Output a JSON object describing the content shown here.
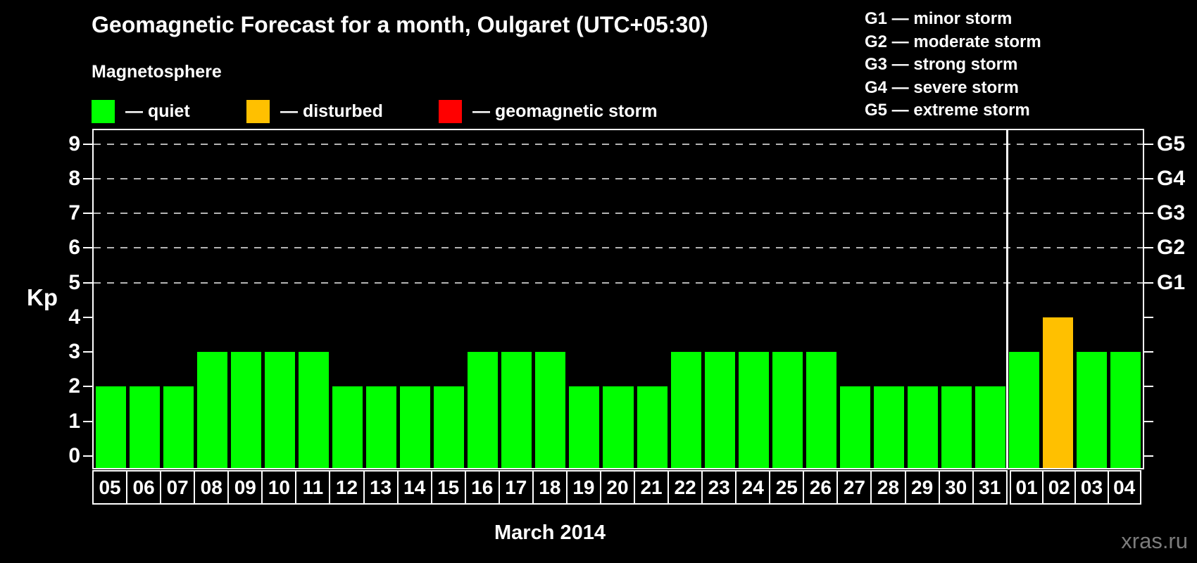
{
  "header": {
    "title": "Geomagnetic Forecast for a month, Oulgaret (UTC+05:30)"
  },
  "legend": {
    "title": "Magnetosphere",
    "items": [
      {
        "name": "quiet",
        "label": "— quiet",
        "color": "#00ff00"
      },
      {
        "name": "disturbed",
        "label": "— disturbed",
        "color": "#ffc000"
      },
      {
        "name": "geomagnetic-storm",
        "label": "— geomagnetic storm",
        "color": "#ff0000"
      }
    ]
  },
  "storm_scale_legend": [
    "G1 — minor storm",
    "G2 — moderate storm",
    "G3 — strong storm",
    "G4 — severe storm",
    "G5 — extreme storm"
  ],
  "watermark": "xras.ru",
  "chart_data": {
    "type": "bar",
    "title": "Geomagnetic Forecast for a month, Oulgaret (UTC+05:30)",
    "ylabel": "Kp",
    "month_label": "March 2014",
    "ylim": [
      0,
      9
    ],
    "yticks": [
      0,
      1,
      2,
      3,
      4,
      5,
      6,
      7,
      8,
      9
    ],
    "gridlines_at_kp": [
      5,
      6,
      7,
      8,
      9
    ],
    "grid": "dashed horizontal lines at storm levels only",
    "legend_position": "top",
    "right_axis": [
      {
        "kp": 5,
        "label": "G1"
      },
      {
        "kp": 6,
        "label": "G2"
      },
      {
        "kp": 7,
        "label": "G3"
      },
      {
        "kp": 8,
        "label": "G4"
      },
      {
        "kp": 9,
        "label": "G5"
      }
    ],
    "categories": [
      "05",
      "06",
      "07",
      "08",
      "09",
      "10",
      "11",
      "12",
      "13",
      "14",
      "15",
      "16",
      "17",
      "18",
      "19",
      "20",
      "21",
      "22",
      "23",
      "24",
      "25",
      "26",
      "27",
      "28",
      "29",
      "30",
      "31",
      "01",
      "02",
      "03",
      "04"
    ],
    "values": [
      2,
      2,
      2,
      3,
      3,
      3,
      3,
      2,
      2,
      2,
      2,
      3,
      3,
      3,
      2,
      2,
      2,
      3,
      3,
      3,
      3,
      3,
      2,
      2,
      2,
      2,
      2,
      3,
      4,
      3,
      3
    ],
    "statuses": [
      "quiet",
      "quiet",
      "quiet",
      "quiet",
      "quiet",
      "quiet",
      "quiet",
      "quiet",
      "quiet",
      "quiet",
      "quiet",
      "quiet",
      "quiet",
      "quiet",
      "quiet",
      "quiet",
      "quiet",
      "quiet",
      "quiet",
      "quiet",
      "quiet",
      "quiet",
      "quiet",
      "quiet",
      "quiet",
      "quiet",
      "quiet",
      "quiet",
      "disturbed",
      "quiet",
      "quiet"
    ],
    "month_split_index": 27,
    "colors": {
      "quiet": "#00ff00",
      "disturbed": "#ffc000",
      "storm": "#ff0000"
    }
  }
}
